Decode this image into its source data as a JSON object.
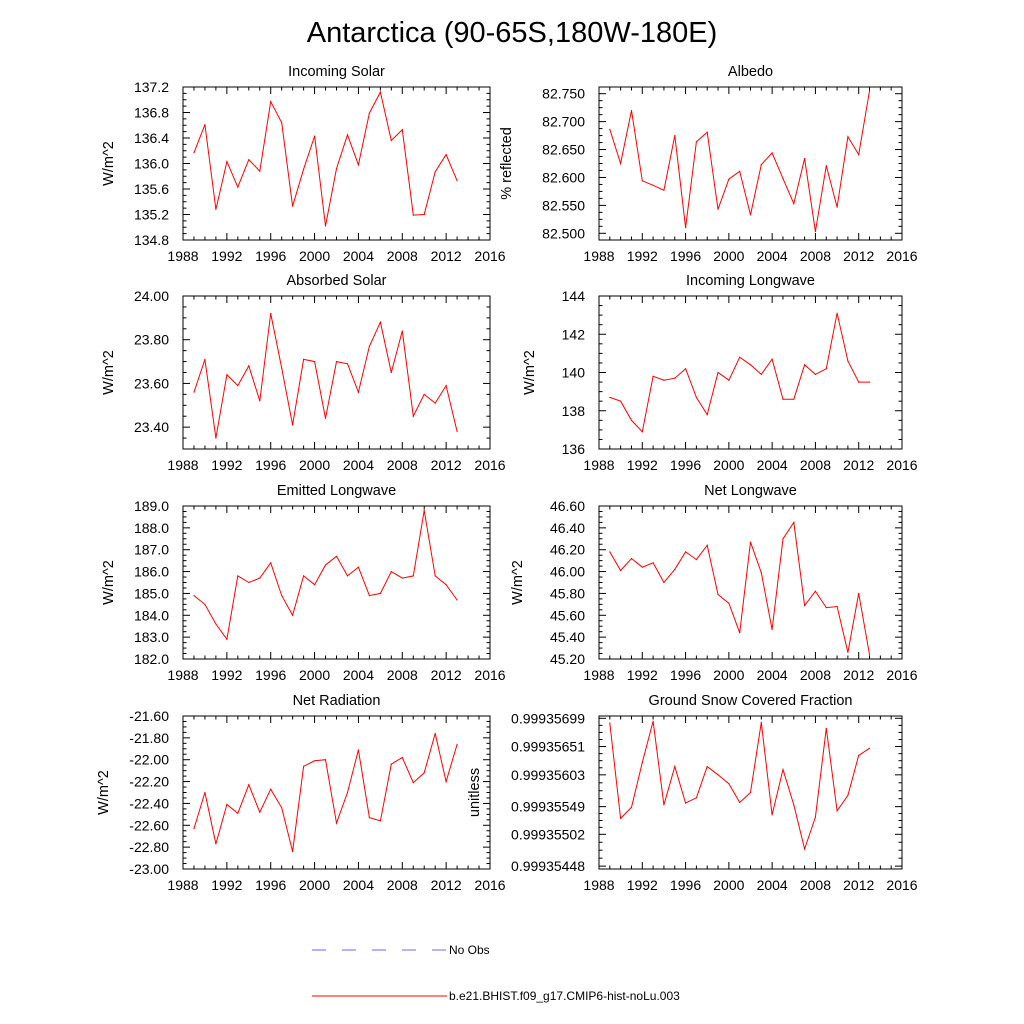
{
  "figure": {
    "title": "Antarctica (90-65S,180W-180E)",
    "colors": {
      "model": "#ff0000",
      "obs": "#6666ff",
      "axes": "#000000"
    }
  },
  "legend": {
    "items": [
      {
        "label": "No Obs",
        "style": "dashed",
        "color": "#6666ff"
      },
      {
        "label": "b.e21.BHIST.f09_g17.CMIP6-hist-noLu.003",
        "style": "solid",
        "color": "#ff0000"
      }
    ]
  },
  "chart_data": [
    {
      "type": "line",
      "title": "Incoming Solar",
      "xlabel": "",
      "ylabel": "W/m^2",
      "xlim": [
        1988,
        2016
      ],
      "ylim": [
        134.8,
        137.2
      ],
      "xticks": [
        1988,
        1992,
        1996,
        2000,
        2004,
        2008,
        2012,
        2016
      ],
      "yticks": [
        134.8,
        135.2,
        135.6,
        136.0,
        136.4,
        136.8,
        137.2
      ],
      "ydecimals": 1,
      "series": [
        {
          "name": "b.e21.BHIST.f09_g17.CMIP6-hist-noLu.003",
          "x": [
            1989,
            1990,
            1991,
            1992,
            1993,
            1994,
            1995,
            1996,
            1997,
            1998,
            1999,
            2000,
            2001,
            2002,
            2003,
            2004,
            2005,
            2006,
            2007,
            2008,
            2009,
            2010,
            2011,
            2012,
            2013
          ],
          "values": [
            136.17,
            136.61,
            135.28,
            136.03,
            135.63,
            136.06,
            135.88,
            136.97,
            136.64,
            135.33,
            135.91,
            136.43,
            135.02,
            135.92,
            136.45,
            135.98,
            136.79,
            137.12,
            136.36,
            136.53,
            135.19,
            135.2,
            135.87,
            136.14,
            135.73
          ]
        }
      ]
    },
    {
      "type": "line",
      "title": "Albedo",
      "xlabel": "",
      "ylabel": "% reflected",
      "xlim": [
        1988,
        2016
      ],
      "ylim": [
        82.488,
        82.762
      ],
      "xticks": [
        1988,
        1992,
        1996,
        2000,
        2004,
        2008,
        2012,
        2016
      ],
      "yticks": [
        82.5,
        82.55,
        82.6,
        82.65,
        82.7,
        82.75
      ],
      "ydecimals": 3,
      "series": [
        {
          "name": "b.e21.BHIST.f09_g17.CMIP6-hist-noLu.003",
          "x": [
            1989,
            1990,
            1991,
            1992,
            1993,
            1994,
            1995,
            1996,
            1997,
            1998,
            1999,
            2000,
            2001,
            2002,
            2003,
            2004,
            2005,
            2006,
            2007,
            2008,
            2009,
            2010,
            2011,
            2012,
            2013
          ],
          "values": [
            82.686,
            82.625,
            82.72,
            82.594,
            82.586,
            82.577,
            82.675,
            82.51,
            82.664,
            82.681,
            82.543,
            82.597,
            82.611,
            82.533,
            82.623,
            82.644,
            82.598,
            82.553,
            82.634,
            82.503,
            82.621,
            82.547,
            82.673,
            82.641,
            82.755
          ]
        }
      ]
    },
    {
      "type": "line",
      "title": "Absorbed Solar",
      "xlabel": "",
      "ylabel": "W/m^2",
      "xlim": [
        1988,
        2016
      ],
      "ylim": [
        23.3,
        24.0
      ],
      "xticks": [
        1988,
        1992,
        1996,
        2000,
        2004,
        2008,
        2012,
        2016
      ],
      "yticks": [
        23.4,
        23.6,
        23.8,
        24.0
      ],
      "ydecimals": 2,
      "series": [
        {
          "name": "b.e21.BHIST.f09_g17.CMIP6-hist-noLu.003",
          "x": [
            1989,
            1990,
            1991,
            1992,
            1993,
            1994,
            1995,
            1996,
            1997,
            1998,
            1999,
            2000,
            2001,
            2002,
            2003,
            2004,
            2005,
            2006,
            2007,
            2008,
            2009,
            2010,
            2011,
            2012,
            2013
          ],
          "values": [
            23.56,
            23.71,
            23.35,
            23.64,
            23.59,
            23.68,
            23.52,
            23.92,
            23.67,
            23.41,
            23.71,
            23.7,
            23.44,
            23.7,
            23.69,
            23.56,
            23.77,
            23.88,
            23.65,
            23.84,
            23.45,
            23.55,
            23.51,
            23.59,
            23.38
          ]
        }
      ]
    },
    {
      "type": "line",
      "title": "Incoming Longwave",
      "xlabel": "",
      "ylabel": "W/m^2",
      "xlim": [
        1988,
        2016
      ],
      "ylim": [
        136,
        144
      ],
      "xticks": [
        1988,
        1992,
        1996,
        2000,
        2004,
        2008,
        2012,
        2016
      ],
      "yticks": [
        136,
        138,
        140,
        142,
        144
      ],
      "ydecimals": 0,
      "series": [
        {
          "name": "b.e21.BHIST.f09_g17.CMIP6-hist-noLu.003",
          "x": [
            1989,
            1990,
            1991,
            1992,
            1993,
            1994,
            1995,
            1996,
            1997,
            1998,
            1999,
            2000,
            2001,
            2002,
            2003,
            2004,
            2005,
            2006,
            2007,
            2008,
            2009,
            2010,
            2011,
            2012,
            2013
          ],
          "values": [
            138.7,
            138.5,
            137.5,
            136.9,
            139.8,
            139.6,
            139.7,
            140.2,
            138.7,
            137.8,
            140.0,
            139.6,
            140.8,
            140.4,
            139.9,
            140.7,
            138.6,
            138.6,
            140.4,
            139.9,
            140.2,
            143.1,
            140.6,
            139.5,
            139.5
          ]
        }
      ]
    },
    {
      "type": "line",
      "title": "Emitted Longwave",
      "xlabel": "",
      "ylabel": "W/m^2",
      "xlim": [
        1988,
        2016
      ],
      "ylim": [
        182.0,
        189.0
      ],
      "xticks": [
        1988,
        1992,
        1996,
        2000,
        2004,
        2008,
        2012,
        2016
      ],
      "yticks": [
        182.0,
        183.0,
        184.0,
        185.0,
        186.0,
        187.0,
        188.0,
        189.0
      ],
      "ydecimals": 1,
      "series": [
        {
          "name": "b.e21.BHIST.f09_g17.CMIP6-hist-noLu.003",
          "x": [
            1989,
            1990,
            1991,
            1992,
            1993,
            1994,
            1995,
            1996,
            1997,
            1998,
            1999,
            2000,
            2001,
            2002,
            2003,
            2004,
            2005,
            2006,
            2007,
            2008,
            2009,
            2010,
            2011,
            2012,
            2013
          ],
          "values": [
            184.9,
            184.5,
            183.6,
            182.9,
            185.8,
            185.5,
            185.7,
            186.4,
            184.9,
            184.0,
            185.8,
            185.4,
            186.3,
            186.7,
            185.8,
            186.2,
            184.9,
            185.0,
            186.0,
            185.7,
            185.8,
            188.8,
            185.8,
            185.4,
            184.7
          ]
        }
      ]
    },
    {
      "type": "line",
      "title": "Net Longwave",
      "xlabel": "",
      "ylabel": "W/m^2",
      "xlim": [
        1988,
        2016
      ],
      "ylim": [
        45.2,
        46.6
      ],
      "xticks": [
        1988,
        1992,
        1996,
        2000,
        2004,
        2008,
        2012,
        2016
      ],
      "yticks": [
        45.2,
        45.4,
        45.6,
        45.8,
        46.0,
        46.2,
        46.4,
        46.6
      ],
      "ydecimals": 2,
      "series": [
        {
          "name": "b.e21.BHIST.f09_g17.CMIP6-hist-noLu.003",
          "x": [
            1989,
            1990,
            1991,
            1992,
            1993,
            1994,
            1995,
            1996,
            1997,
            1998,
            1999,
            2000,
            2001,
            2002,
            2003,
            2004,
            2005,
            2006,
            2007,
            2008,
            2009,
            2010,
            2011,
            2012,
            2013
          ],
          "values": [
            46.18,
            46.01,
            46.12,
            46.04,
            46.08,
            45.9,
            46.02,
            46.18,
            46.11,
            46.24,
            45.79,
            45.71,
            45.44,
            46.27,
            45.99,
            45.47,
            46.3,
            46.45,
            45.69,
            45.82,
            45.67,
            45.68,
            45.26,
            45.8,
            45.24
          ]
        }
      ]
    },
    {
      "type": "line",
      "title": "Net Radiation",
      "xlabel": "",
      "ylabel": "W/m^2",
      "xlim": [
        1988,
        2016
      ],
      "ylim": [
        -23.0,
        -21.6
      ],
      "xticks": [
        1988,
        1992,
        1996,
        2000,
        2004,
        2008,
        2012,
        2016
      ],
      "yticks": [
        -23.0,
        -22.8,
        -22.6,
        -22.4,
        -22.2,
        -22.0,
        -21.8,
        -21.6
      ],
      "ydecimals": 2,
      "series": [
        {
          "name": "b.e21.BHIST.f09_g17.CMIP6-hist-noLu.003",
          "x": [
            1989,
            1990,
            1991,
            1992,
            1993,
            1994,
            1995,
            1996,
            1997,
            1998,
            1999,
            2000,
            2001,
            2002,
            2003,
            2004,
            2005,
            2006,
            2007,
            2008,
            2009,
            2010,
            2011,
            2012,
            2013
          ],
          "values": [
            -22.63,
            -22.3,
            -22.77,
            -22.41,
            -22.49,
            -22.23,
            -22.48,
            -22.27,
            -22.44,
            -22.84,
            -22.06,
            -22.01,
            -22.0,
            -22.58,
            -22.3,
            -21.91,
            -22.53,
            -22.56,
            -22.04,
            -21.98,
            -22.21,
            -22.12,
            -21.76,
            -22.2,
            -21.86
          ]
        }
      ]
    },
    {
      "type": "line",
      "title": "Ground Snow Covered Fraction",
      "xlabel": "",
      "ylabel": "unitless",
      "xlim": [
        1988,
        2016
      ],
      "ylim": [
        0.999354431,
        0.999357029
      ],
      "xticks": [
        1988,
        1992,
        1996,
        2000,
        2004,
        2008,
        2012,
        2016
      ],
      "yticks": [
        0.99935448,
        0.99935502,
        0.99935549,
        0.99935603,
        0.99935651,
        0.99935699
      ],
      "ytick_labels": [
        "0.99935448",
        "0.99935502",
        "0.99935549",
        "0.99935603",
        "0.99935651",
        "0.99935699"
      ],
      "series": [
        {
          "name": "b.e21.BHIST.f09_g17.CMIP6-hist-noLu.003",
          "x": [
            1989,
            1990,
            1991,
            1992,
            1993,
            1994,
            1995,
            1996,
            1997,
            1998,
            1999,
            2000,
            2001,
            2002,
            2003,
            2004,
            2005,
            2006,
            2007,
            2008,
            2009,
            2010,
            2011,
            2012,
            2013
          ],
          "values": [
            0.99935691,
            0.99935529,
            0.99935548,
            0.99935624,
            0.99935694,
            0.99935552,
            0.99935617,
            0.99935555,
            0.99935564,
            0.99935617,
            0.99935603,
            0.99935588,
            0.99935556,
            0.99935573,
            0.99935692,
            0.99935535,
            0.99935612,
            0.99935552,
            0.99935477,
            0.99935531,
            0.99935682,
            0.99935542,
            0.99935568,
            0.99935636,
            0.99935648
          ]
        }
      ]
    }
  ]
}
